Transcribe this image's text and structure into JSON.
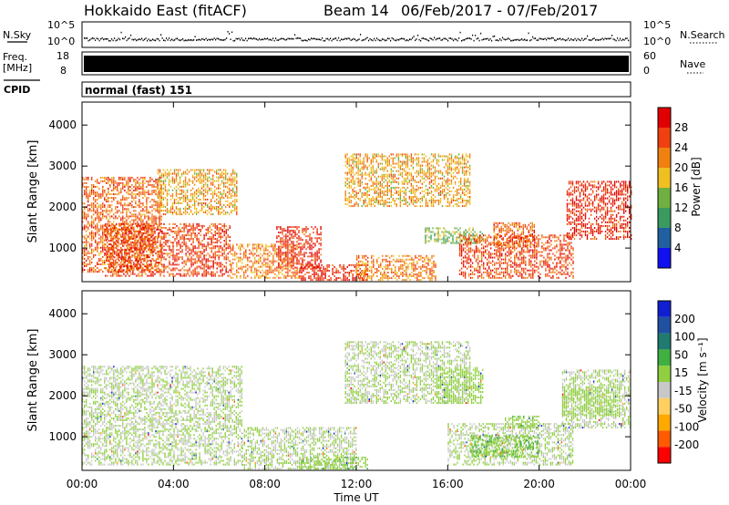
{
  "header": {
    "station": "Hokkaido East (fitACF)",
    "beam": "Beam 14",
    "dates": "06/Feb/2017 - 07/Feb/2017"
  },
  "status_panels": {
    "nsky_label": "N.Sky",
    "nsky_ticks": [
      "10^5",
      "10^0"
    ],
    "freq_label_1": "Freq.",
    "freq_label_2": "[MHz]",
    "freq_ticks": [
      "18",
      "8"
    ],
    "nave_ticks": [
      "60",
      "0"
    ],
    "nsearch_label": "N.Search",
    "nave_label": "Nave",
    "cpid_label": "CPID",
    "cpid_value": "normal (fast) 151"
  },
  "colors": {
    "power": [
      "#1010f0",
      "#2060a0",
      "#3a9a60",
      "#70b040",
      "#f0c020",
      "#f08010",
      "#f04010",
      "#e00000"
    ],
    "velocity": [
      "#ff0000",
      "#ff5a00",
      "#ffa800",
      "#ffd060",
      "#c8c8c8",
      "#90d040",
      "#40b040",
      "#207a70",
      "#2050a0",
      "#1020d0"
    ]
  },
  "chart_data": [
    {
      "type": "heatmap",
      "title": "",
      "xlabel": "Time UT",
      "ylabel": "Slant Range [km]",
      "x_ticks": [
        "00:00",
        "04:00",
        "08:00",
        "12:00",
        "16:00",
        "20:00",
        "00:00"
      ],
      "y_ticks": [
        "4000",
        "3000",
        "2000",
        "1000"
      ],
      "xlim": [
        0,
        24
      ],
      "ylim": [
        180,
        4560
      ],
      "colorbar": {
        "label": "Power [dB]",
        "ticks": [
          "28",
          "24",
          "20",
          "16",
          "12",
          "8",
          "4"
        ],
        "range": [
          0,
          32
        ]
      },
      "regions": [
        {
          "t0": 0.0,
          "t1": 3.5,
          "r0": 400,
          "r1": 2700,
          "value": 24
        },
        {
          "t0": 3.3,
          "t1": 6.8,
          "r0": 1800,
          "r1": 2900,
          "value": 20
        },
        {
          "t0": 1.0,
          "t1": 6.5,
          "r0": 300,
          "r1": 1600,
          "value": 26
        },
        {
          "t0": 6.5,
          "t1": 9.5,
          "r0": 250,
          "r1": 1100,
          "value": 22
        },
        {
          "t0": 8.5,
          "t1": 10.5,
          "r0": 500,
          "r1": 1500,
          "value": 28
        },
        {
          "t0": 9.5,
          "t1": 12.5,
          "r0": 200,
          "r1": 600,
          "value": 28
        },
        {
          "t0": 12.0,
          "t1": 15.5,
          "r0": 200,
          "r1": 800,
          "value": 22
        },
        {
          "t0": 11.5,
          "t1": 17.0,
          "r0": 2000,
          "r1": 3300,
          "value": 20
        },
        {
          "t0": 15.0,
          "t1": 17.5,
          "r0": 1100,
          "r1": 1500,
          "value": 14
        },
        {
          "t0": 16.5,
          "t1": 21.5,
          "r0": 250,
          "r1": 1300,
          "value": 26
        },
        {
          "t0": 18.0,
          "t1": 19.8,
          "r0": 1000,
          "r1": 1600,
          "value": 24
        },
        {
          "t0": 21.2,
          "t1": 24.0,
          "r0": 1200,
          "r1": 2600,
          "value": 28
        }
      ]
    },
    {
      "type": "heatmap",
      "title": "",
      "xlabel": "Time UT",
      "ylabel": "Slant Range [km]",
      "x_ticks": [
        "00:00",
        "04:00",
        "08:00",
        "12:00",
        "16:00",
        "20:00",
        "00:00"
      ],
      "y_ticks": [
        "4000",
        "3000",
        "2000",
        "1000"
      ],
      "xlim": [
        0,
        24
      ],
      "ylim": [
        180,
        4560
      ],
      "colorbar": {
        "label": "Velocity [m s⁻¹]",
        "ticks": [
          "200",
          "100",
          "50",
          "15",
          "-15",
          "-50",
          "-100",
          "-200"
        ],
        "range": [
          -250,
          250
        ]
      },
      "regions": [
        {
          "t0": 0.0,
          "t1": 7.0,
          "r0": 300,
          "r1": 2700,
          "value": 0
        },
        {
          "t0": 7.0,
          "t1": 12.0,
          "r0": 200,
          "r1": 1200,
          "value": 0
        },
        {
          "t0": 9.5,
          "t1": 12.5,
          "r0": 200,
          "r1": 500,
          "value": 40
        },
        {
          "t0": 11.5,
          "t1": 17.0,
          "r0": 1800,
          "r1": 3300,
          "value": 0
        },
        {
          "t0": 15.5,
          "t1": 17.5,
          "r0": 1800,
          "r1": 2700,
          "value": 30
        },
        {
          "t0": 16.0,
          "t1": 21.5,
          "r0": 300,
          "r1": 1300,
          "value": 0
        },
        {
          "t0": 17.0,
          "t1": 20.0,
          "r0": 500,
          "r1": 1000,
          "value": 45
        },
        {
          "t0": 18.5,
          "t1": 20.0,
          "r0": 1200,
          "r1": 1500,
          "value": 40
        },
        {
          "t0": 21.0,
          "t1": 24.0,
          "r0": 1200,
          "r1": 2600,
          "value": 0
        },
        {
          "t0": 21.0,
          "t1": 23.5,
          "r0": 1500,
          "r1": 2200,
          "value": 25
        }
      ]
    }
  ]
}
